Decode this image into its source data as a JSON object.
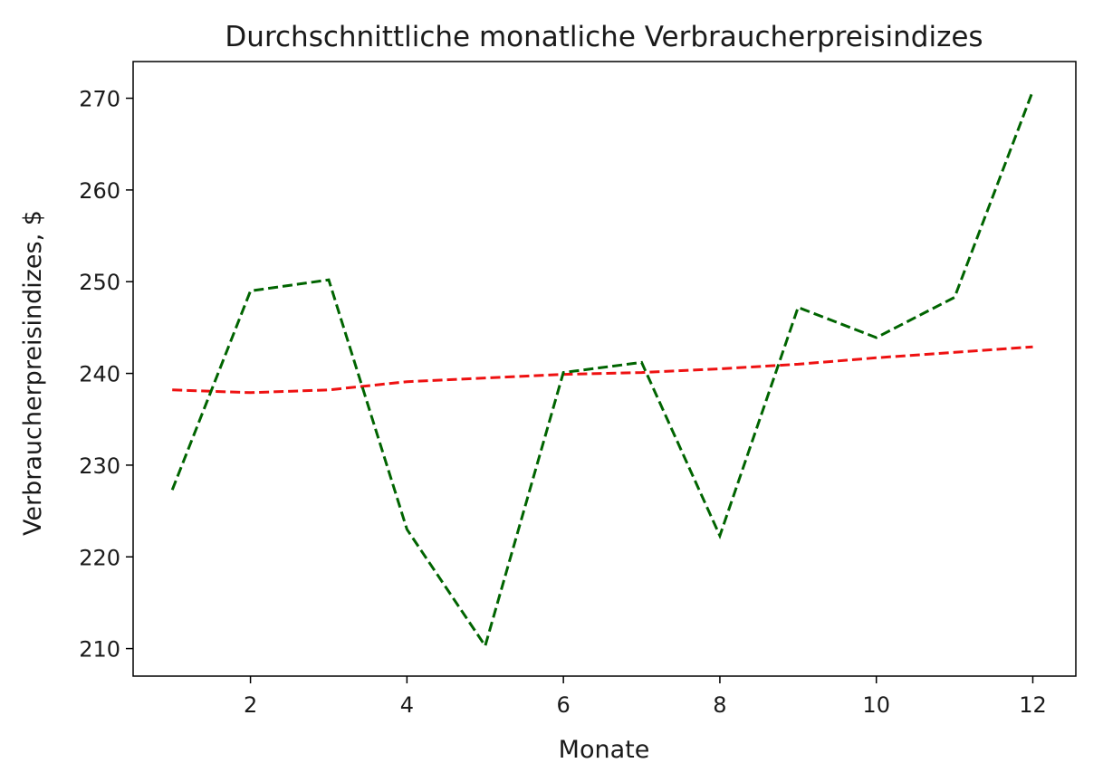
{
  "chart_data": {
    "type": "line",
    "title": "Durchschnittliche monatliche Verbraucherpreisindizes",
    "xlabel": "Monate",
    "ylabel": "Verbraucherpreisindizes, $",
    "x": [
      1,
      2,
      3,
      4,
      5,
      6,
      7,
      8,
      9,
      10,
      11,
      12
    ],
    "xlim": [
      0.5,
      12.55
    ],
    "ylim": [
      207,
      274
    ],
    "xticks": [
      2,
      4,
      6,
      8,
      10,
      12
    ],
    "yticks": [
      210,
      220,
      230,
      240,
      250,
      260,
      270
    ],
    "grid": false,
    "series": [
      {
        "color": "#ee1111",
        "style": "dashed",
        "values": [
          238.2,
          237.9,
          238.2,
          239.1,
          239.5,
          239.9,
          240.1,
          240.5,
          241.0,
          241.7,
          242.3,
          242.9
        ]
      },
      {
        "color": "#006400",
        "style": "dashed",
        "values": [
          227.3,
          249.0,
          250.2,
          223.0,
          210.3,
          240.1,
          241.2,
          222.3,
          247.2,
          243.9,
          248.3,
          270.8
        ]
      }
    ]
  }
}
